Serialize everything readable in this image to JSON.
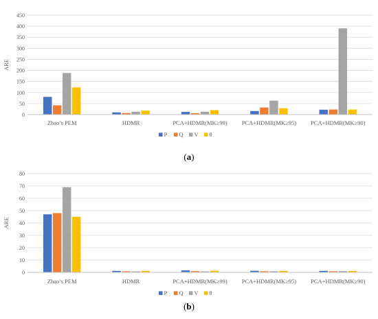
{
  "chart_data": [
    {
      "type": "bar",
      "caption_open": "(",
      "caption_letter": "a",
      "caption_close": ")",
      "ylabel": "ARE",
      "ylim": [
        0,
        450
      ],
      "yticks": [
        0,
        50,
        100,
        150,
        200,
        250,
        300,
        350,
        400,
        450
      ],
      "grid": true,
      "legend_position": "bottom",
      "categories": [
        "Zhao’s PEM",
        "HDMR",
        "PCA+HDMR(MK≥99)",
        "PCA+HDMR(MK≥95)",
        "PCA+HDMR(MK≥90)"
      ],
      "series": [
        {
          "name": "P",
          "color": "#4472C4",
          "values": [
            80,
            10,
            12,
            16,
            22
          ]
        },
        {
          "name": "Q",
          "color": "#ED7D31",
          "values": [
            42,
            7,
            6,
            32,
            23
          ]
        },
        {
          "name": "V",
          "color": "#A5A5A5",
          "values": [
            188,
            13,
            13,
            63,
            390
          ]
        },
        {
          "name": "θ",
          "color": "#FFC000",
          "values": [
            123,
            18,
            20,
            29,
            23
          ]
        }
      ]
    },
    {
      "type": "bar",
      "caption_open": "(",
      "caption_letter": "b",
      "caption_close": ")",
      "ylabel": "ARE",
      "ylim": [
        0,
        80
      ],
      "yticks": [
        0,
        10,
        20,
        30,
        40,
        50,
        60,
        70,
        80
      ],
      "grid": true,
      "legend_position": "bottom",
      "categories": [
        "Zhao’s PEM",
        "HDMR",
        "PCA+HDMR(MK≥99)",
        "PCA+HDMR(MK≥95)",
        "PCA+HDMR(MK≥90)"
      ],
      "series": [
        {
          "name": "P",
          "color": "#4472C4",
          "values": [
            47,
            1.2,
            1.6,
            1.3,
            1.2
          ]
        },
        {
          "name": "Q",
          "color": "#ED7D31",
          "values": [
            48,
            0.9,
            1.0,
            0.9,
            0.9
          ]
        },
        {
          "name": "V",
          "color": "#A5A5A5",
          "values": [
            69,
            0.8,
            0.8,
            0.9,
            1.0
          ]
        },
        {
          "name": "θ",
          "color": "#FFC000",
          "values": [
            45,
            1.2,
            1.3,
            1.2,
            1.1
          ]
        }
      ]
    }
  ]
}
